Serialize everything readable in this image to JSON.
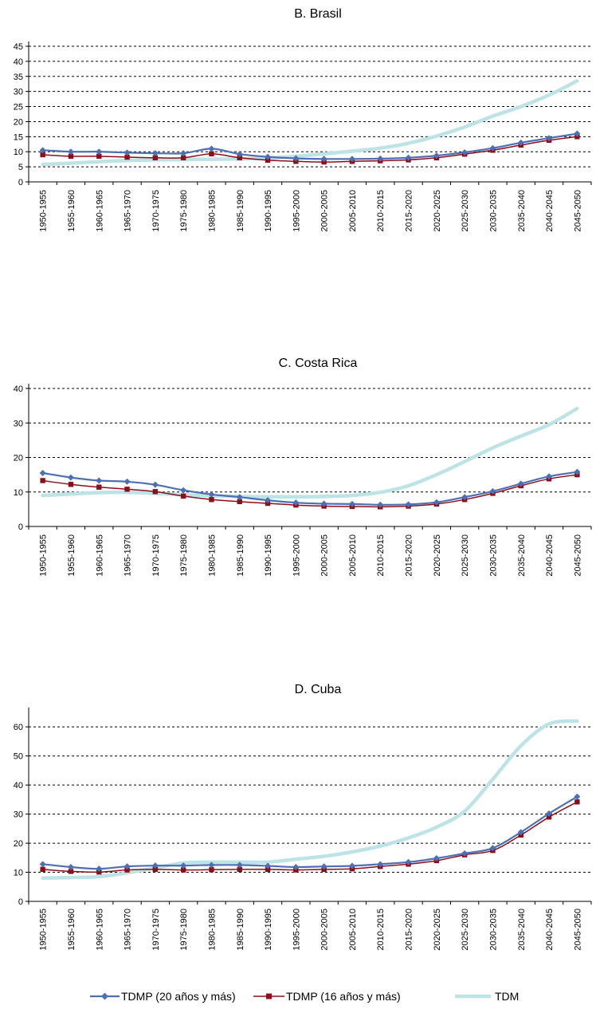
{
  "colors": {
    "series_a": "#4f6fb5",
    "series_b": "#8b0f1a",
    "series_c": "#bde3e6",
    "grid": "#000000",
    "axis": "#000000"
  },
  "icons": [
    "diamond-marker-icon",
    "square-marker-icon",
    "line-marker-icon"
  ],
  "chart_data": [
    {
      "type": "line",
      "title": "B. Brasil",
      "categories": [
        "1950-1955",
        "1955-1960",
        "1960-1965",
        "1965-1970",
        "1970-1975",
        "1975-1980",
        "1980-1985",
        "1985-1990",
        "1990-1995",
        "1995-2000",
        "2000-2005",
        "2005-2010",
        "2010-2015",
        "2015-2020",
        "2020-2025",
        "2025-2030",
        "2030-2035",
        "2035-2040",
        "2040-2045",
        "2045-2050"
      ],
      "ylim": [
        0,
        45
      ],
      "yticks": [
        0,
        5,
        10,
        15,
        20,
        25,
        30,
        35,
        40,
        45
      ],
      "grid": true,
      "legend": "bottom",
      "series": [
        {
          "name": "TDMP (20 años y más)",
          "values": [
            10.5,
            10.0,
            10.0,
            9.7,
            9.5,
            9.5,
            11.0,
            9.2,
            8.3,
            7.8,
            7.6,
            7.6,
            7.7,
            8.0,
            8.7,
            9.8,
            11.2,
            13.0,
            14.5,
            16.0
          ]
        },
        {
          "name": "TDMP (16 años y más)",
          "values": [
            9.0,
            8.5,
            8.5,
            8.2,
            8.0,
            8.0,
            9.3,
            8.0,
            7.2,
            6.8,
            6.6,
            6.8,
            7.0,
            7.3,
            8.0,
            9.2,
            10.5,
            12.2,
            13.8,
            15.0
          ]
        },
        {
          "name": "TDM",
          "values": [
            5.8,
            6.2,
            6.7,
            7.1,
            7.3,
            7.4,
            7.5,
            7.6,
            7.9,
            8.5,
            9.3,
            10.2,
            11.2,
            12.8,
            15.2,
            18.2,
            21.8,
            25.0,
            28.8,
            33.5
          ]
        }
      ]
    },
    {
      "type": "line",
      "title": "C. Costa Rica",
      "categories": [
        "1950-1955",
        "1955-1960",
        "1960-1965",
        "1965-1970",
        "1970-1975",
        "1975-1980",
        "1980-1985",
        "1985-1990",
        "1990-1995",
        "1995-2000",
        "2000-2005",
        "2005-2010",
        "2010-2015",
        "2015-2020",
        "2020-2025",
        "2025-2030",
        "2030-2035",
        "2035-2040",
        "2040-2045",
        "2045-2050"
      ],
      "ylim": [
        0,
        40
      ],
      "yticks": [
        0,
        10,
        20,
        30,
        40
      ],
      "grid": true,
      "legend": "bottom",
      "series": [
        {
          "name": "TDMP (20 años y más)",
          "values": [
            15.5,
            14.2,
            13.3,
            13.0,
            12.1,
            10.5,
            9.3,
            8.5,
            7.6,
            6.9,
            6.6,
            6.5,
            6.3,
            6.4,
            7.0,
            8.5,
            10.2,
            12.4,
            14.5,
            15.8
          ]
        },
        {
          "name": "TDMP (16 años y más)",
          "values": [
            13.3,
            12.2,
            11.4,
            10.8,
            10.1,
            8.8,
            7.8,
            7.2,
            6.7,
            6.2,
            5.9,
            5.8,
            5.7,
            5.9,
            6.5,
            7.8,
            9.6,
            11.8,
            13.8,
            15.0
          ]
        },
        {
          "name": "TDM",
          "values": [
            9.0,
            9.4,
            9.8,
            9.9,
            9.6,
            9.2,
            8.9,
            8.7,
            8.6,
            8.6,
            8.7,
            9.0,
            9.9,
            11.8,
            15.0,
            18.8,
            22.8,
            26.2,
            29.5,
            34.2
          ]
        }
      ]
    },
    {
      "type": "line",
      "title": "D. Cuba",
      "categories": [
        "1950-1955",
        "1955-1960",
        "1960-1965",
        "1965-1970",
        "1970-1975",
        "1975-1980",
        "1980-1985",
        "1985-1990",
        "1990-1995",
        "1995-2000",
        "2000-2005",
        "2005-2010",
        "2010-2015",
        "2015-2020",
        "2020-2025",
        "2025-2030",
        "2030-2035",
        "2035-2040",
        "2040-2045",
        "2045-2050"
      ],
      "ylim": [
        0,
        65
      ],
      "yticks": [
        0,
        10,
        20,
        30,
        40,
        50,
        60
      ],
      "grid": true,
      "legend": "bottom",
      "series": [
        {
          "name": "TDMP (20 años y más)",
          "values": [
            12.8,
            11.8,
            11.2,
            12.0,
            12.3,
            12.3,
            12.5,
            12.5,
            12.2,
            11.8,
            12.0,
            12.2,
            12.8,
            13.5,
            14.8,
            16.5,
            18.3,
            23.8,
            30.2,
            36.0
          ]
        },
        {
          "name": "TDMP (16 años y más)",
          "values": [
            11.0,
            10.3,
            10.1,
            10.8,
            11.0,
            10.8,
            10.9,
            11.0,
            11.0,
            10.8,
            11.0,
            11.2,
            12.0,
            12.8,
            14.0,
            16.0,
            17.5,
            22.8,
            29.0,
            34.2
          ]
        },
        {
          "name": "TDM",
          "values": [
            8.0,
            8.2,
            8.5,
            9.8,
            11.5,
            13.2,
            13.5,
            13.5,
            13.5,
            14.5,
            15.5,
            17.0,
            19.0,
            21.8,
            25.5,
            31.0,
            42.0,
            53.5,
            61.0,
            62.0
          ]
        }
      ]
    }
  ]
}
